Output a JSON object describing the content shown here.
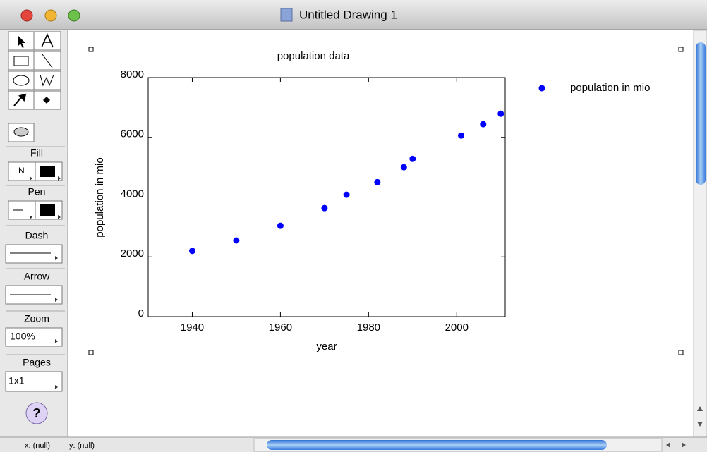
{
  "window": {
    "title": "Untitled Drawing 1"
  },
  "toolbar": {
    "fill_label": "Fill",
    "fill_popup": "N",
    "pen_label": "Pen",
    "dash_label": "Dash",
    "arrow_label": "Arrow",
    "zoom_label": "Zoom",
    "zoom_value": "100%",
    "pages_label": "Pages",
    "pages_value": "1x1",
    "help": "?"
  },
  "status": {
    "x": "x: (null)",
    "y": "y: (null)"
  },
  "chart_data": {
    "type": "scatter",
    "title": "population data",
    "xlabel": "year",
    "ylabel": "population in mio",
    "x": [
      1940,
      1950,
      1960,
      1970,
      1975,
      1982,
      1988,
      1990,
      2001,
      2006,
      2010
    ],
    "series": [
      {
        "name": "population in mio",
        "color": "#0000ff",
        "values": [
          2200,
          2550,
          3040,
          3630,
          4080,
          4500,
          5000,
          5280,
          6060,
          6440,
          6790
        ]
      }
    ],
    "xlim": [
      1930,
      2011
    ],
    "ylim": [
      0,
      8000
    ],
    "xticks": [
      1940,
      1960,
      1980,
      2000
    ],
    "yticks": [
      0,
      2000,
      4000,
      6000,
      8000
    ],
    "legend": "right"
  }
}
